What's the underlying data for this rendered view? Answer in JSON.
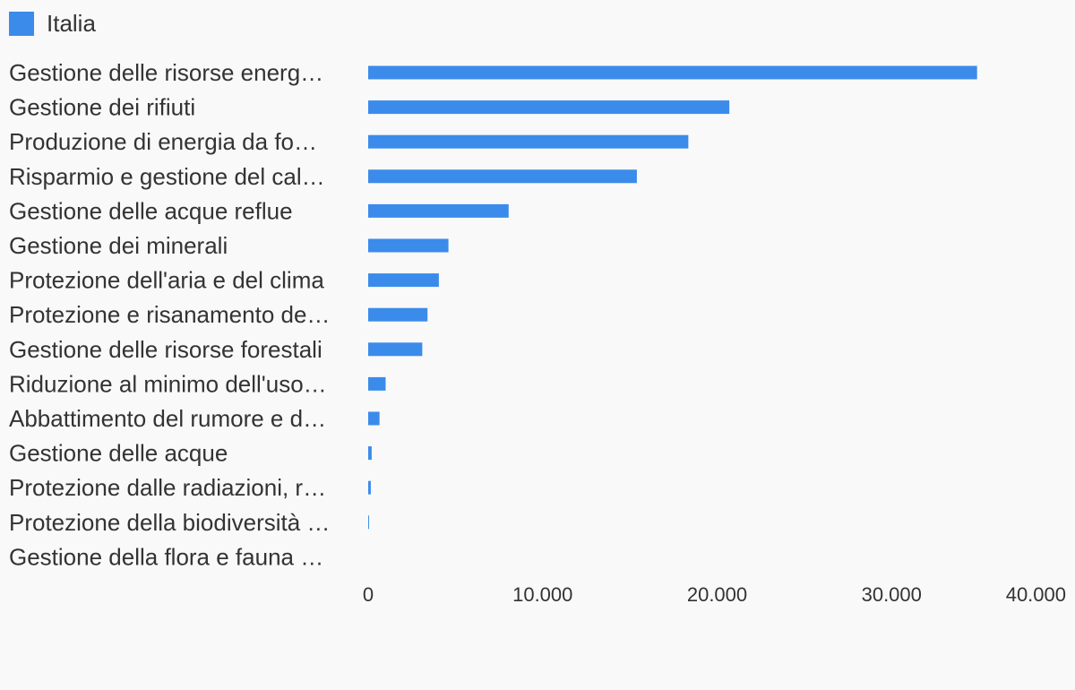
{
  "legend": {
    "label": "Italia",
    "color": "#3b8beb"
  },
  "chart_data": {
    "type": "bar",
    "orientation": "horizontal",
    "title": "",
    "xlabel": "",
    "ylabel": "",
    "xlim": [
      0,
      40000
    ],
    "grid": false,
    "legend_position": "top-left",
    "categories": [
      "Gestione delle risorse energ…",
      "Gestione dei rifiuti",
      "Produzione di energia da fo…",
      "Risparmio e gestione del cal…",
      "Gestione delle acque reflue",
      "Gestione dei minerali",
      "Protezione dell'aria e del clima",
      "Protezione e risanamento de…",
      "Gestione delle risorse forestali",
      "Riduzione al minimo dell'uso…",
      "Abbattimento del rumore e d…",
      "Gestione delle acque",
      "Protezione dalle radiazioni, r…",
      "Protezione della biodiversità …",
      "Gestione della flora e fauna …"
    ],
    "series": [
      {
        "name": "Italia",
        "color": "#3b8beb",
        "values": [
          34900,
          20700,
          18350,
          15400,
          8050,
          4600,
          4050,
          3400,
          3100,
          1000,
          650,
          200,
          150,
          50,
          0
        ]
      }
    ],
    "x_ticks": [
      {
        "value": 0,
        "label": "0"
      },
      {
        "value": 10000,
        "label": "10.000"
      },
      {
        "value": 20000,
        "label": "20.000"
      },
      {
        "value": 30000,
        "label": "30.000"
      },
      {
        "value": 40000,
        "label": "40.000"
      }
    ]
  }
}
